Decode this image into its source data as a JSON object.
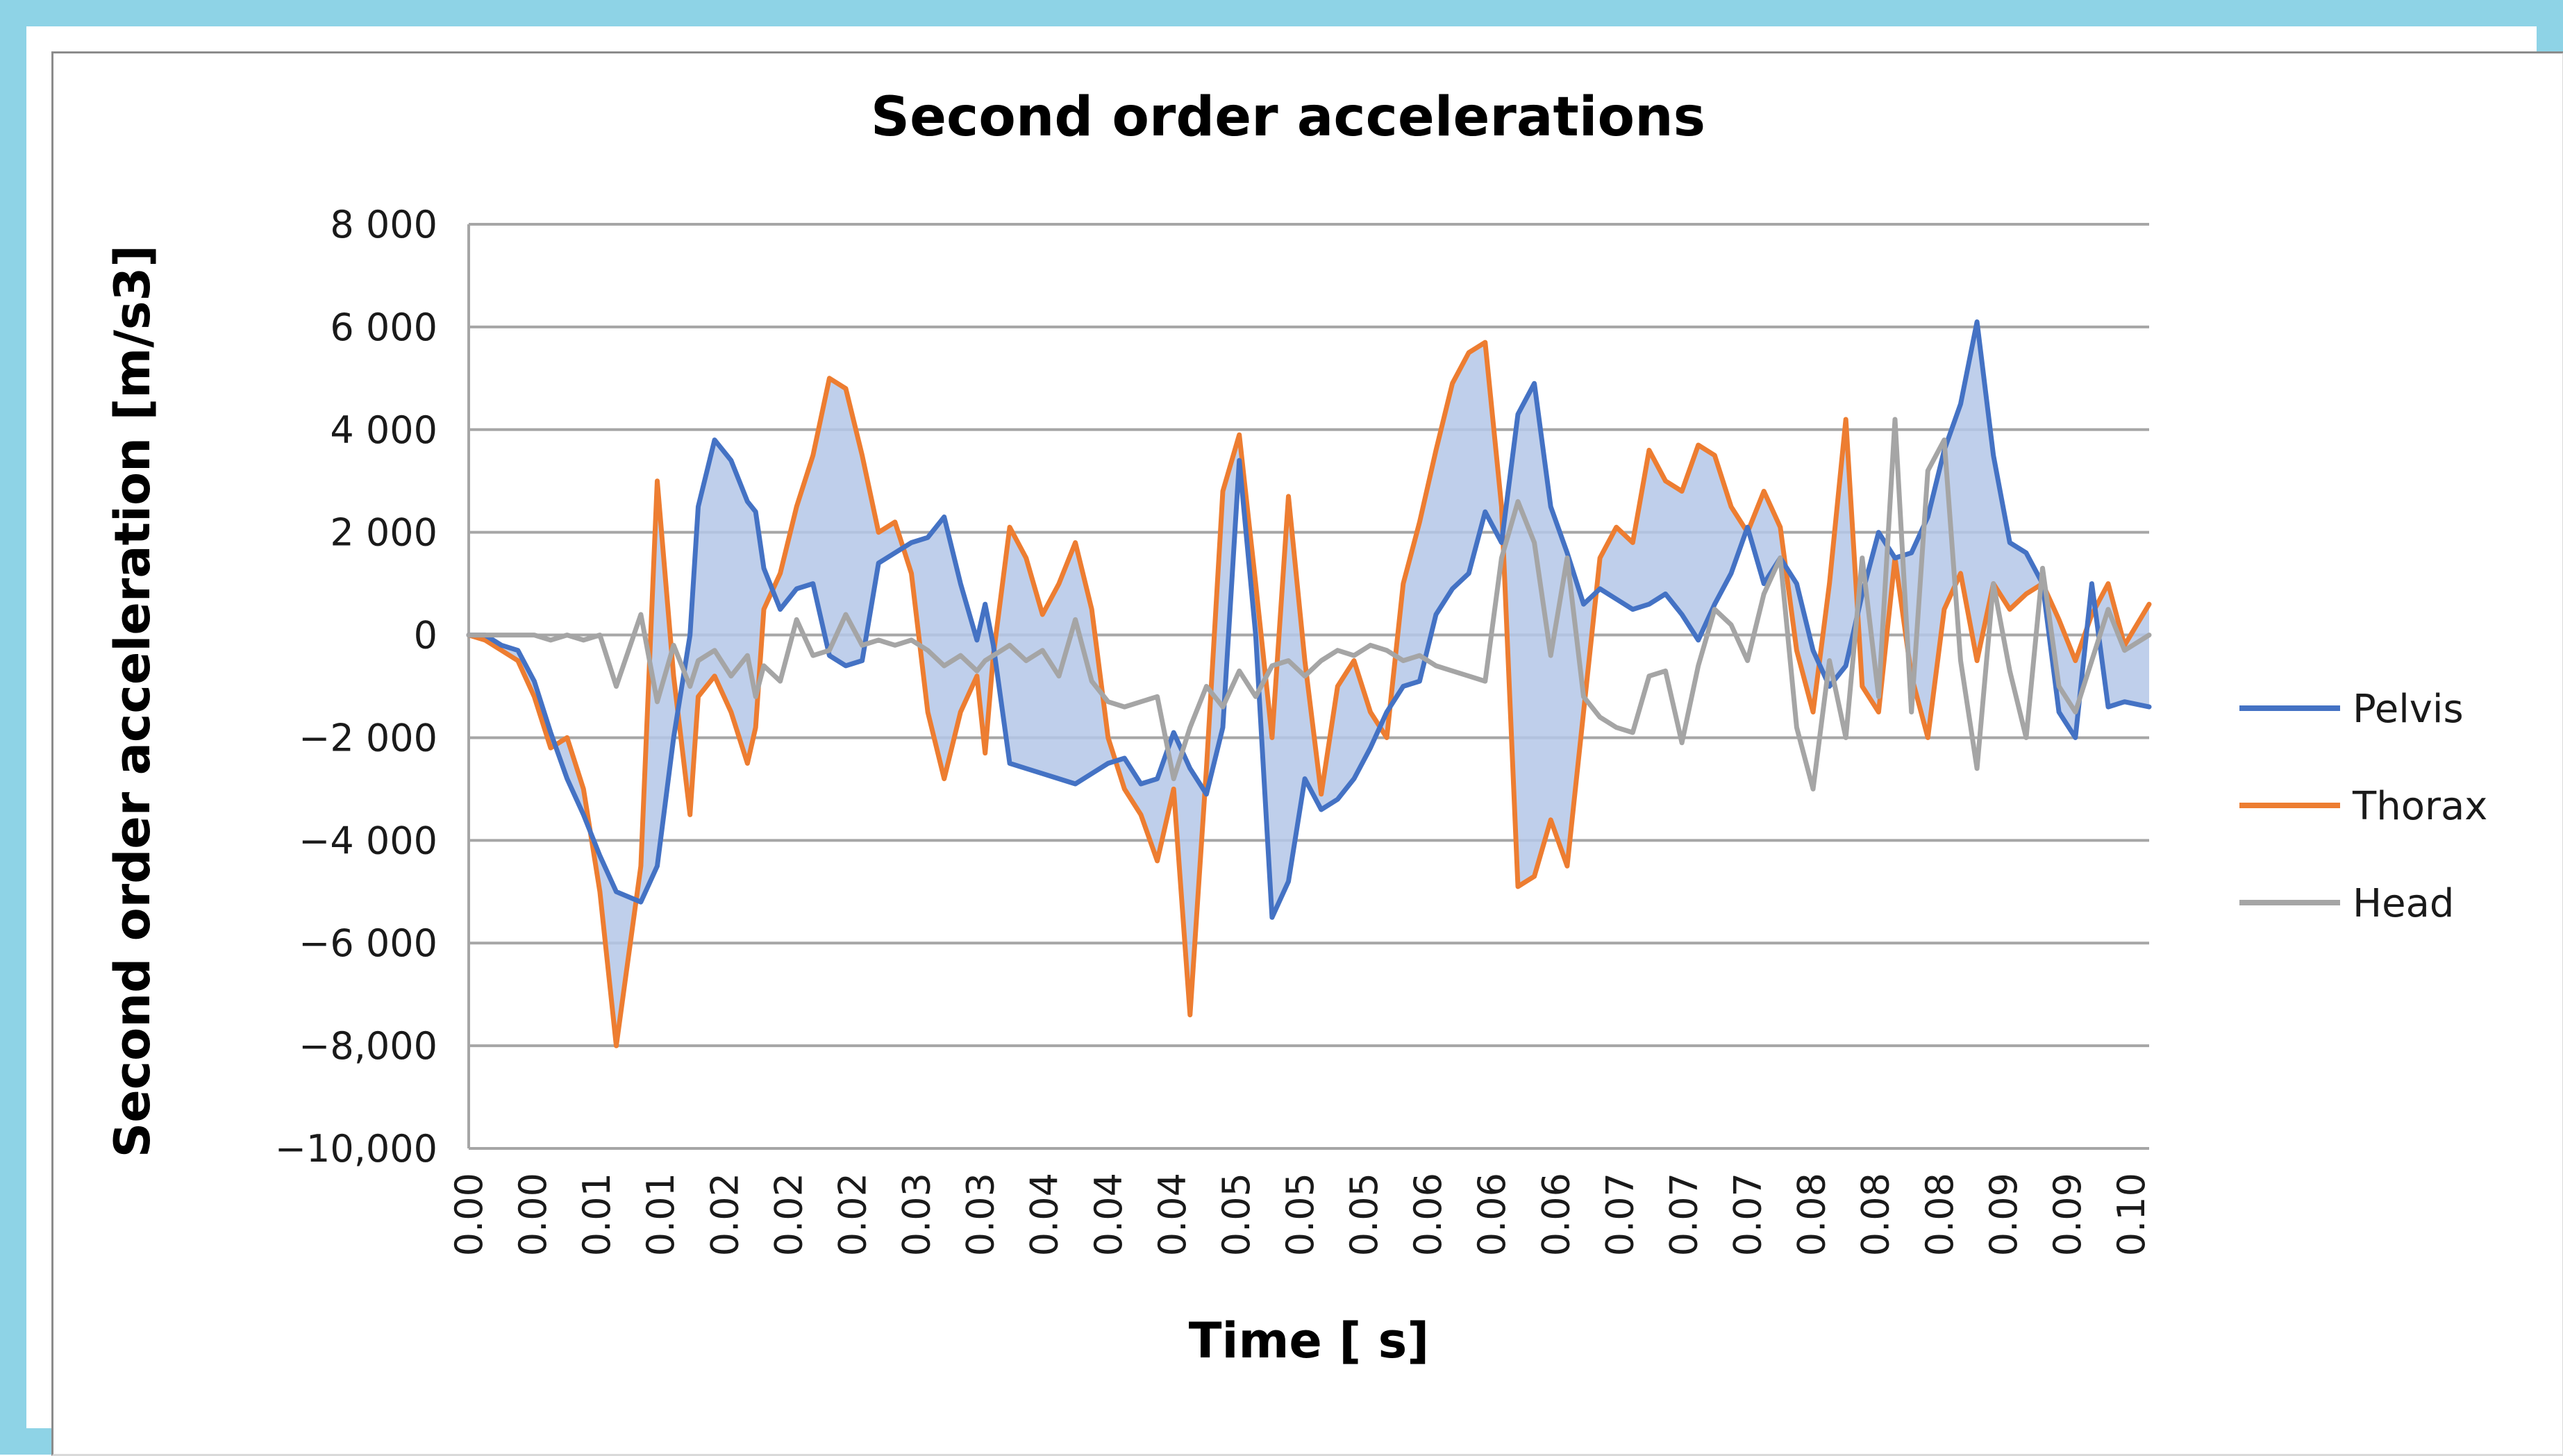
{
  "chart_data": {
    "type": "line",
    "title": "Second order accelerations",
    "xlabel": "Time [ s]",
    "ylabel": "Second order acceleration  [m/s3]",
    "ylim": [
      -10000,
      8000
    ],
    "xlim": [
      0,
      0.1025
    ],
    "y_ticks": [
      {
        "value": 8000,
        "label": "8 000"
      },
      {
        "value": 6000,
        "label": "6 000"
      },
      {
        "value": 4000,
        "label": "4 000"
      },
      {
        "value": 2000,
        "label": "2 000"
      },
      {
        "value": 0,
        "label": "0"
      },
      {
        "value": -2000,
        "label": "−2 000"
      },
      {
        "value": -4000,
        "label": "−4 000"
      },
      {
        "value": -6000,
        "label": "−6 000"
      },
      {
        "value": -8000,
        "label": "−8,000"
      },
      {
        "value": -10000,
        "label": "−10,000"
      }
    ],
    "x_tick_labels": [
      "0.00",
      "0.00",
      "0.01",
      "0.01",
      "0.02",
      "0.02",
      "0.02",
      "0.03",
      "0.03",
      "0.04",
      "0.04",
      "0.04",
      "0.05",
      "0.05",
      "0.05",
      "0.06",
      "0.06",
      "0.06",
      "0.07",
      "0.07",
      "0.07",
      "0.08",
      "0.08",
      "0.08",
      "0.09",
      "0.09",
      "0.10"
    ],
    "x_tick_step": 0.0039,
    "gridlines": true,
    "legend_position": "right",
    "fill_between": {
      "series_a": "Pelvis",
      "series_b": "Thorax",
      "color": "#B4C7E7"
    },
    "series": [
      {
        "name": "Pelvis",
        "color": "#4472C4",
        "x": [
          0.0,
          0.001,
          0.002,
          0.003,
          0.004,
          0.005,
          0.006,
          0.007,
          0.008,
          0.009,
          0.0105,
          0.0115,
          0.0125,
          0.0135,
          0.014,
          0.015,
          0.016,
          0.017,
          0.0175,
          0.018,
          0.019,
          0.02,
          0.021,
          0.022,
          0.023,
          0.024,
          0.025,
          0.026,
          0.027,
          0.028,
          0.029,
          0.03,
          0.031,
          0.0315,
          0.032,
          0.033,
          0.034,
          0.035,
          0.036,
          0.037,
          0.038,
          0.039,
          0.04,
          0.041,
          0.042,
          0.043,
          0.044,
          0.045,
          0.046,
          0.047,
          0.048,
          0.049,
          0.05,
          0.051,
          0.052,
          0.053,
          0.054,
          0.055,
          0.056,
          0.057,
          0.058,
          0.059,
          0.06,
          0.061,
          0.062,
          0.063,
          0.064,
          0.065,
          0.066,
          0.067,
          0.068,
          0.069,
          0.07,
          0.071,
          0.072,
          0.073,
          0.074,
          0.075,
          0.076,
          0.077,
          0.078,
          0.079,
          0.08,
          0.081,
          0.082,
          0.083,
          0.084,
          0.085,
          0.086,
          0.087,
          0.088,
          0.089,
          0.09,
          0.091,
          0.092,
          0.093,
          0.094,
          0.095,
          0.096,
          0.097,
          0.098,
          0.099,
          0.1,
          0.101,
          0.1025
        ],
        "y": [
          0,
          0,
          -200,
          -300,
          -900,
          -1900,
          -2800,
          -3500,
          -4300,
          -5000,
          -5200,
          -4500,
          -2000,
          0,
          2500,
          3800,
          3400,
          2600,
          2400,
          1300,
          500,
          900,
          1000,
          -400,
          -600,
          -500,
          1400,
          1600,
          1800,
          1900,
          2300,
          1000,
          -100,
          600,
          -200,
          -2500,
          -2600,
          -2700,
          -2800,
          -2900,
          -2700,
          -2500,
          -2400,
          -2900,
          -2800,
          -1900,
          -2600,
          -3100,
          -1800,
          3400,
          0,
          -5500,
          -4800,
          -2800,
          -3400,
          -3200,
          -2800,
          -2200,
          -1500,
          -1000,
          -900,
          400,
          900,
          1200,
          2400,
          1800,
          4300,
          4900,
          2500,
          1600,
          600,
          900,
          700,
          500,
          600,
          800,
          400,
          -100,
          600,
          1200,
          2100,
          1000,
          1500,
          1000,
          -300,
          -1000,
          -600,
          800,
          2000,
          1500,
          1600,
          2300,
          3600,
          4500,
          6100,
          3500,
          1800,
          1600,
          1000,
          -1500,
          -2000,
          1000,
          -1400,
          -1300,
          -1400
        ]
      },
      {
        "name": "Thorax",
        "color": "#ED7D31",
        "x": [
          0.0,
          0.001,
          0.002,
          0.003,
          0.004,
          0.005,
          0.006,
          0.007,
          0.008,
          0.009,
          0.0105,
          0.0115,
          0.0125,
          0.0135,
          0.014,
          0.015,
          0.016,
          0.017,
          0.0175,
          0.018,
          0.019,
          0.02,
          0.021,
          0.022,
          0.023,
          0.024,
          0.025,
          0.026,
          0.027,
          0.028,
          0.029,
          0.03,
          0.031,
          0.0315,
          0.032,
          0.033,
          0.034,
          0.035,
          0.036,
          0.037,
          0.038,
          0.039,
          0.04,
          0.041,
          0.042,
          0.043,
          0.044,
          0.045,
          0.046,
          0.047,
          0.048,
          0.049,
          0.05,
          0.051,
          0.052,
          0.053,
          0.054,
          0.055,
          0.056,
          0.057,
          0.058,
          0.059,
          0.06,
          0.061,
          0.062,
          0.063,
          0.064,
          0.065,
          0.066,
          0.067,
          0.068,
          0.069,
          0.07,
          0.071,
          0.072,
          0.073,
          0.074,
          0.075,
          0.076,
          0.077,
          0.078,
          0.079,
          0.08,
          0.081,
          0.082,
          0.083,
          0.084,
          0.085,
          0.086,
          0.087,
          0.088,
          0.089,
          0.09,
          0.091,
          0.092,
          0.093,
          0.094,
          0.095,
          0.096,
          0.097,
          0.098,
          0.099,
          0.1,
          0.101,
          0.1025
        ],
        "y": [
          0,
          -100,
          -300,
          -500,
          -1200,
          -2200,
          -2000,
          -3000,
          -5000,
          -8000,
          -4500,
          3000,
          -800,
          -3500,
          -1200,
          -800,
          -1500,
          -2500,
          -1800,
          500,
          1200,
          2500,
          3500,
          5000,
          4800,
          3500,
          2000,
          2200,
          1200,
          -1500,
          -2800,
          -1500,
          -800,
          -2300,
          -400,
          2100,
          1500,
          400,
          1000,
          1800,
          500,
          -2000,
          -3000,
          -3500,
          -4400,
          -3000,
          -7400,
          -2600,
          2800,
          3900,
          1000,
          -2000,
          2700,
          -500,
          -3100,
          -1000,
          -500,
          -1500,
          -2000,
          1000,
          2200,
          3600,
          4900,
          5500,
          5700,
          2500,
          -4900,
          -4700,
          -3600,
          -4500,
          -1500,
          1500,
          2100,
          1800,
          3600,
          3000,
          2800,
          3700,
          3500,
          2500,
          2000,
          2800,
          2100,
          -300,
          -1500,
          1000,
          4200,
          -1000,
          -1500,
          1500,
          -800,
          -2000,
          500,
          1200,
          -500,
          1000,
          500,
          800,
          1000,
          300,
          -500,
          400,
          1000,
          -200,
          600
        ]
      },
      {
        "name": "Head",
        "color": "#A5A5A5",
        "x": [
          0.0,
          0.001,
          0.002,
          0.003,
          0.004,
          0.005,
          0.006,
          0.007,
          0.008,
          0.009,
          0.0105,
          0.0115,
          0.0125,
          0.0135,
          0.014,
          0.015,
          0.016,
          0.017,
          0.0175,
          0.018,
          0.019,
          0.02,
          0.021,
          0.022,
          0.023,
          0.024,
          0.025,
          0.026,
          0.027,
          0.028,
          0.029,
          0.03,
          0.031,
          0.0315,
          0.032,
          0.033,
          0.034,
          0.035,
          0.036,
          0.037,
          0.038,
          0.039,
          0.04,
          0.041,
          0.042,
          0.043,
          0.044,
          0.045,
          0.046,
          0.047,
          0.048,
          0.049,
          0.05,
          0.051,
          0.052,
          0.053,
          0.054,
          0.055,
          0.056,
          0.057,
          0.058,
          0.059,
          0.06,
          0.061,
          0.062,
          0.063,
          0.064,
          0.065,
          0.066,
          0.067,
          0.068,
          0.069,
          0.07,
          0.071,
          0.072,
          0.073,
          0.074,
          0.075,
          0.076,
          0.077,
          0.078,
          0.079,
          0.08,
          0.081,
          0.082,
          0.083,
          0.084,
          0.085,
          0.086,
          0.087,
          0.088,
          0.089,
          0.09,
          0.091,
          0.092,
          0.093,
          0.094,
          0.095,
          0.096,
          0.097,
          0.098,
          0.099,
          0.1,
          0.101,
          0.1025
        ],
        "y": [
          0,
          0,
          0,
          0,
          0,
          -100,
          0,
          -100,
          0,
          -1000,
          400,
          -1300,
          -200,
          -1000,
          -500,
          -300,
          -800,
          -400,
          -1200,
          -600,
          -900,
          300,
          -400,
          -300,
          400,
          -200,
          -100,
          -200,
          -100,
          -300,
          -600,
          -400,
          -700,
          -500,
          -400,
          -200,
          -500,
          -300,
          -800,
          300,
          -900,
          -1300,
          -1400,
          -1300,
          -1200,
          -2800,
          -1800,
          -1000,
          -1400,
          -700,
          -1200,
          -600,
          -500,
          -800,
          -500,
          -300,
          -400,
          -200,
          -300,
          -500,
          -400,
          -600,
          -700,
          -800,
          -900,
          1500,
          2600,
          1800,
          -400,
          1500,
          -1200,
          -1600,
          -1800,
          -1900,
          -800,
          -700,
          -2100,
          -600,
          500,
          200,
          -500,
          800,
          1500,
          -1800,
          -3000,
          -500,
          -2000,
          1500,
          -1200,
          4200,
          -1500,
          3200,
          3800,
          -500,
          -2600,
          1000,
          -700,
          -2000,
          1300,
          -1000,
          -1500,
          -500,
          500,
          -300,
          0
        ]
      }
    ]
  }
}
